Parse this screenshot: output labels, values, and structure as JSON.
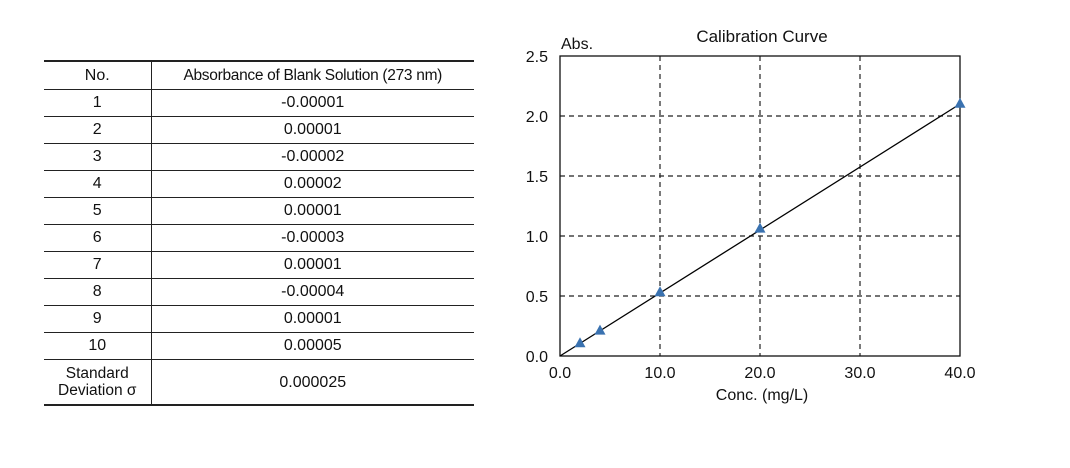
{
  "table": {
    "header": {
      "no": "No.",
      "absorbance": "Absorbance of Blank Solution (273 nm)"
    },
    "rows": [
      {
        "no": "1",
        "value": "-0.00001"
      },
      {
        "no": "2",
        "value": "0.00001"
      },
      {
        "no": "3",
        "value": "-0.00002"
      },
      {
        "no": "4",
        "value": "0.00002"
      },
      {
        "no": "5",
        "value": "0.00001"
      },
      {
        "no": "6",
        "value": "-0.00003"
      },
      {
        "no": "7",
        "value": "0.00001"
      },
      {
        "no": "8",
        "value": "-0.00004"
      },
      {
        "no": "9",
        "value": "0.00001"
      },
      {
        "no": "10",
        "value": "0.00005"
      }
    ],
    "std_dev": {
      "label_line1": "Standard",
      "label_line2": "Deviation σ",
      "value": "0.000025"
    }
  },
  "chart_data": {
    "type": "scatter",
    "title": "Calibration Curve",
    "xlabel": "Conc. (mg/L)",
    "ylabel": "Abs.",
    "xlim": [
      0,
      40
    ],
    "ylim": [
      0,
      2.5
    ],
    "x_ticks": [
      0,
      10,
      20,
      30,
      40
    ],
    "x_tick_labels": [
      "0.0",
      "10.0",
      "20.0",
      "30.0",
      "40.0"
    ],
    "y_ticks": [
      0,
      0.5,
      1.0,
      1.5,
      2.0,
      2.5
    ],
    "y_tick_labels": [
      "0.0",
      "0.5",
      "1.0",
      "1.5",
      "2.0",
      "2.5"
    ],
    "grid": true,
    "series": [
      {
        "marker": "triangle",
        "color": "#3a72b0",
        "points": [
          {
            "x": 2,
            "y": 0.105
          },
          {
            "x": 4,
            "y": 0.21
          },
          {
            "x": 10,
            "y": 0.53
          },
          {
            "x": 20,
            "y": 1.06
          },
          {
            "x": 40,
            "y": 2.1
          }
        ]
      }
    ],
    "fit_line": {
      "color": "#000000",
      "from": {
        "x": 0,
        "y": 0
      },
      "to": {
        "x": 40,
        "y": 2.1
      }
    }
  }
}
